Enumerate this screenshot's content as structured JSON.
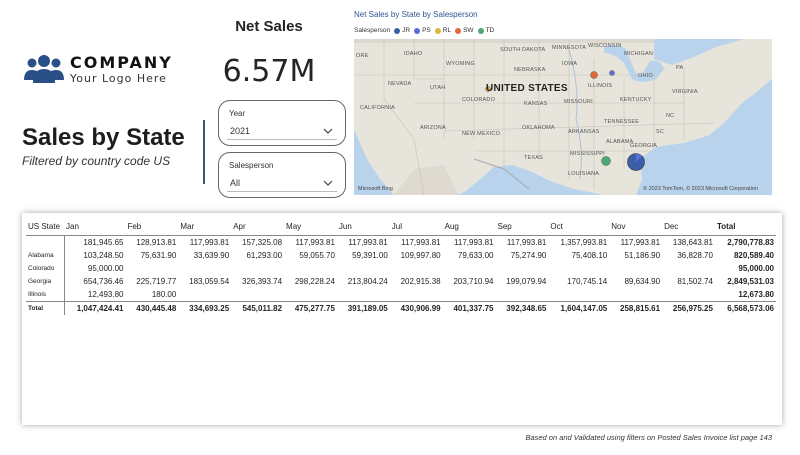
{
  "logo": {
    "name": "COMPANY",
    "tagline": "Your Logo Here"
  },
  "report": {
    "title": "Sales by State",
    "subtitle": "Filtered by country code US"
  },
  "kpi": {
    "label": "Net Sales",
    "value": "6.57M"
  },
  "slicers": {
    "year": {
      "title": "Year",
      "value": "2021"
    },
    "salesperson": {
      "title": "Salesperson",
      "value": "All"
    }
  },
  "map": {
    "title": "Net Sales by State by Salesperson",
    "legend_title": "Salesperson",
    "legend": [
      {
        "code": "JR",
        "color": "#3a5fa8"
      },
      {
        "code": "PS",
        "color": "#5b6fd6"
      },
      {
        "code": "RL",
        "color": "#e0b43a"
      },
      {
        "code": "SW",
        "color": "#e06a3a"
      },
      {
        "code": "TD",
        "color": "#4aaa73"
      }
    ],
    "country_label": "UNITED STATES",
    "states": [
      "IDAHO",
      "WYOMING",
      "SOUTH DAKOTA",
      "MINNESOTA",
      "WISCONSIN",
      "MICHIGAN",
      "NEBRASKA",
      "IOWA",
      "ILLINOIS",
      "OHIO",
      "PA",
      "NEVADA",
      "UTAH",
      "COLORADO",
      "KANSAS",
      "MISSOURI",
      "KENTUCKY",
      "VIRGINIA",
      "CALIFORNIA",
      "ARIZONA",
      "NEW MEXICO",
      "OKLAHOMA",
      "ARKANSAS",
      "TENNESSEE",
      "NC",
      "SC",
      "MISSISSIPPI",
      "ALABAMA",
      "GEORGIA",
      "TEXAS",
      "LOUISIANA",
      "ORE"
    ],
    "watermark": "Microsoft Bing",
    "copyright": "© 2023 TomTom, © 2023 Microsoft Corporation"
  },
  "matrix": {
    "columns": [
      "US State",
      "Jan",
      "Feb",
      "Mar",
      "Apr",
      "May",
      "Jun",
      "Jul",
      "Aug",
      "Sep",
      "Oct",
      "Nov",
      "Dec",
      "Total"
    ],
    "rows": [
      {
        "state": "",
        "values": [
          "181,945.65",
          "128,913.81",
          "117,993.81",
          "157,325.08",
          "117,993.81",
          "117,993.81",
          "117,993.81",
          "117,993.81",
          "117,993.81",
          "1,357,993.81",
          "117,993.81",
          "138,643.81",
          "2,790,778.83"
        ]
      },
      {
        "state": "Alabama",
        "values": [
          "103,248.50",
          "75,631.90",
          "33,639.90",
          "61,293.00",
          "59,055.70",
          "59,391.00",
          "109,997.80",
          "79,633.00",
          "75,274.90",
          "75,408.10",
          "51,186.90",
          "36,828.70",
          "820,589.40"
        ]
      },
      {
        "state": "Colorado",
        "values": [
          "95,000.00",
          "",
          "",
          "",
          "",
          "",
          "",
          "",
          "",
          "",
          "",
          "",
          "95,000.00"
        ]
      },
      {
        "state": "Georgia",
        "values": [
          "654,736.46",
          "225,719.77",
          "183,059.54",
          "326,393.74",
          "298,228.24",
          "213,804.24",
          "202,915.38",
          "203,710.94",
          "199,079.94",
          "170,745.14",
          "89,634.90",
          "81,502.74",
          "2,849,531.03"
        ]
      },
      {
        "state": "Illinois",
        "values": [
          "12,493.80",
          "180.00",
          "",
          "",
          "",
          "",
          "",
          "",
          "",
          "",
          "",
          "",
          "12,673.80"
        ]
      },
      {
        "state": "Total",
        "values": [
          "1,047,424.41",
          "430,445.48",
          "334,693.25",
          "545,011.82",
          "475,277.75",
          "391,189.05",
          "430,906.99",
          "401,337.75",
          "392,348.65",
          "1,604,147.05",
          "258,815.61",
          "256,975.25",
          "6,568,573.06"
        ]
      }
    ]
  },
  "footnote": "Based on and Validated using filters on Posted Sales Invoice list page 143"
}
